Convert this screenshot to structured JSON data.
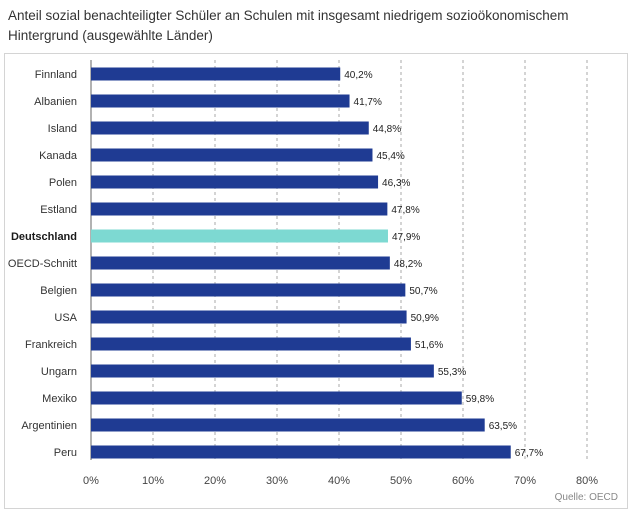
{
  "title": "Anteil sozial benachteiligter Schüler an Schulen mit insgesamt niedrigem sozioökonomischem Hintergrund (ausgewählte Länder)",
  "source": "Quelle: OECD",
  "colors": {
    "bar": "#1f3b93",
    "highlight": "#7dd9d2",
    "grid": "#aaaaaa"
  },
  "chart_data": {
    "type": "bar",
    "orientation": "horizontal",
    "title": "Anteil sozial benachteiligter Schüler an Schulen mit insgesamt niedrigem sozioökonomischem Hintergrund (ausgewählte Länder)",
    "categories": [
      "Finnland",
      "Albanien",
      "Island",
      "Kanada",
      "Polen",
      "Estland",
      "Deutschland",
      "OECD-Schnitt",
      "Belgien",
      "USA",
      "Frankreich",
      "Ungarn",
      "Mexiko",
      "Argentinien",
      "Peru"
    ],
    "values": [
      40.2,
      41.7,
      44.8,
      45.4,
      46.3,
      47.8,
      47.9,
      48.2,
      50.7,
      50.9,
      51.6,
      55.3,
      59.8,
      63.5,
      67.7
    ],
    "value_labels": [
      "40,2%",
      "41,7%",
      "44,8%",
      "45,4%",
      "46,3%",
      "47,8%",
      "47,9%",
      "48,2%",
      "50,7%",
      "50,9%",
      "51,6%",
      "55,3%",
      "59,8%",
      "63,5%",
      "67,7%"
    ],
    "highlight": "Deutschland",
    "x_ticks": [
      0,
      10,
      20,
      30,
      40,
      50,
      60,
      70,
      80
    ],
    "x_tick_labels": [
      "0%",
      "10%",
      "20%",
      "30%",
      "40%",
      "50%",
      "60%",
      "70%",
      "80%"
    ],
    "xlim": [
      0,
      80
    ],
    "grid": "vertical dashed",
    "xlabel": "",
    "ylabel": ""
  }
}
